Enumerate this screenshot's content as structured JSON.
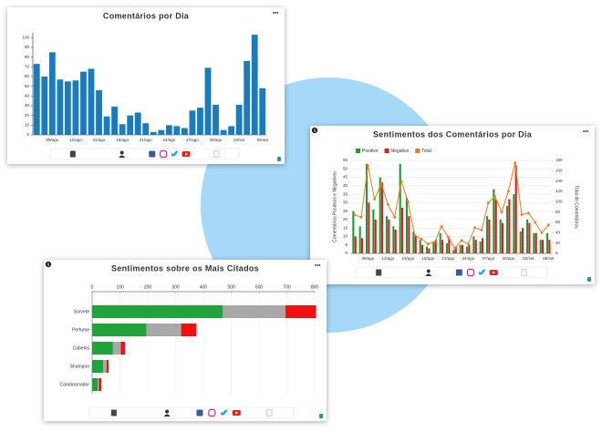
{
  "chart_data": [
    {
      "type": "bar",
      "title": "Comentários por Dia",
      "categories": [
        null,
        null,
        "09/ago",
        null,
        null,
        "12/ago",
        null,
        null,
        "15/ago",
        null,
        null,
        "18/ago",
        null,
        null,
        "21/ago",
        null,
        null,
        "24/ago",
        null,
        null,
        "27/ago",
        null,
        null,
        "30/ago",
        null,
        null,
        "02/set",
        null,
        null,
        "05/set"
      ],
      "values": [
        73,
        60,
        85,
        57,
        55,
        56,
        65,
        68,
        46,
        19,
        29,
        11,
        20,
        23,
        12,
        3,
        5,
        10,
        9,
        7,
        25,
        28,
        69,
        31,
        5,
        9,
        31,
        76,
        103,
        48
      ],
      "color": "#1a7cbf",
      "ylim": [
        0,
        105
      ],
      "yticks": [
        0,
        10,
        20,
        30,
        40,
        50,
        60,
        70,
        80,
        90,
        100
      ],
      "grid": false
    },
    {
      "type": "combo",
      "title": "Sentimentos dos Comentários por Dia",
      "categories": [
        null,
        null,
        "09/ago",
        null,
        null,
        "12/ago",
        null,
        null,
        "15/ago",
        null,
        null,
        "18/ago",
        null,
        null,
        "21/ago",
        null,
        null,
        "24/ago",
        null,
        null,
        "27/ago",
        null,
        null,
        "30/ago",
        null,
        null,
        "02/set",
        null,
        null,
        "05/set"
      ],
      "ylabel": "Comentários Positivos e Negativos",
      "y2label": "Total de Comentários",
      "ylim": [
        0,
        55
      ],
      "yticks": [
        0,
        5,
        10,
        15,
        20,
        25,
        30,
        35,
        40,
        45,
        50,
        55
      ],
      "y2lim": [
        0,
        180
      ],
      "y2ticks": [
        0,
        20,
        40,
        60,
        80,
        100,
        120,
        140,
        160,
        180
      ],
      "grid": true,
      "series": [
        {
          "name": "Positivo",
          "color": "#1f9a3a",
          "type": "bar",
          "values": [
            25,
            16,
            53,
            26,
            45,
            22,
            16,
            53,
            33,
            13,
            8,
            4,
            7,
            12,
            6,
            2,
            5,
            4,
            10,
            7,
            22,
            38,
            20,
            28,
            35,
            13,
            20,
            12,
            8,
            12
          ]
        },
        {
          "name": "Negativo",
          "color": "#e11b1b",
          "type": "bar",
          "values": [
            10,
            9,
            30,
            20,
            42,
            20,
            14,
            27,
            22,
            10,
            5,
            3,
            8,
            8,
            9,
            4,
            5,
            5,
            8,
            9,
            20,
            32,
            18,
            32,
            52,
            15,
            18,
            12,
            8,
            8
          ]
        },
        {
          "name": "Total",
          "color": "#f07a1a",
          "type": "line",
          "axis": "y2",
          "values": [
            75,
            70,
            170,
            105,
            135,
            95,
            70,
            140,
            100,
            35,
            28,
            18,
            22,
            52,
            32,
            10,
            25,
            18,
            50,
            45,
            98,
            110,
            80,
            120,
            175,
            75,
            78,
            60,
            40,
            55
          ]
        }
      ]
    },
    {
      "type": "bar",
      "orientation": "horizontal",
      "stacked": true,
      "title": "Sentimentos sobre os Mais Citados",
      "categories": [
        "Sorvete",
        "Perfume",
        "Cabelos",
        "Shampoo",
        "Condicionador"
      ],
      "xlim": [
        0,
        800
      ],
      "xticks": [
        0,
        100,
        200,
        300,
        400,
        500,
        600,
        700,
        800
      ],
      "grid": true,
      "series": [
        {
          "color": "#20a33a",
          "values": [
            470,
            195,
            75,
            40,
            20
          ]
        },
        {
          "color": "#a8a8a8",
          "values": [
            225,
            125,
            28,
            12,
            4
          ]
        },
        {
          "color": "#f01010",
          "values": [
            110,
            55,
            15,
            7,
            9
          ]
        }
      ]
    }
  ]
}
